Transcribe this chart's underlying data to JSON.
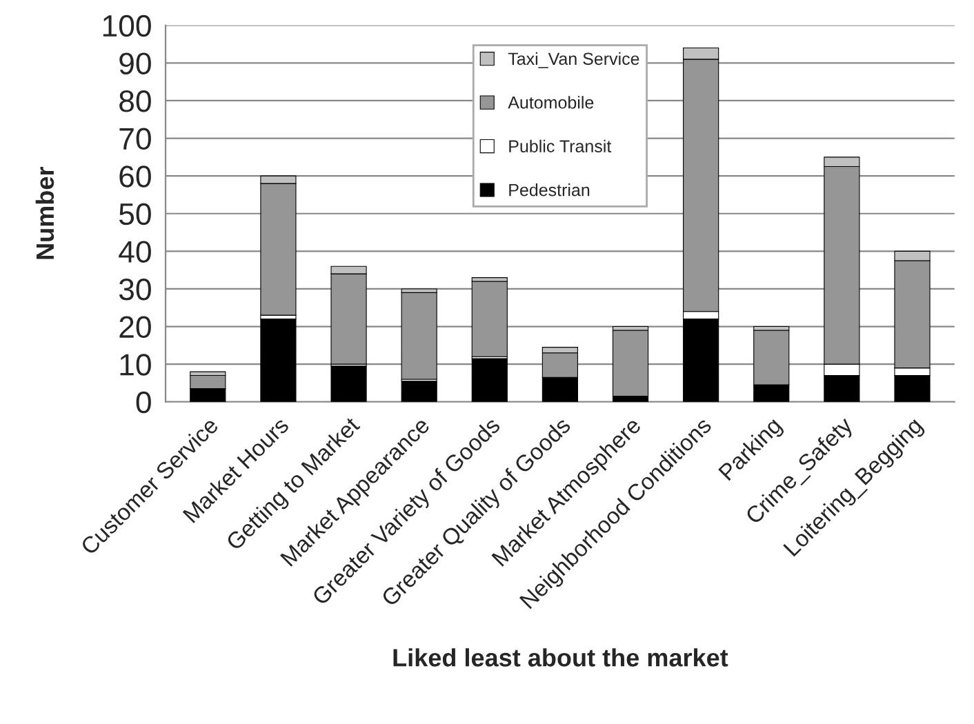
{
  "chart_data": {
    "type": "bar",
    "stacked": true,
    "xlabel": "Liked least about the market",
    "ylabel": "Number",
    "categories": [
      "Customer Service",
      "Market Hours",
      "Getting to Market",
      "Market Appearance",
      "Greater Variety of Goods",
      "Greater Quality of Goods",
      "Market Atmosphere",
      "Neighborhood Conditions",
      "Parking",
      "Crime_Safety",
      "Loitering_Begging"
    ],
    "series": [
      {
        "name": "Pedestrian",
        "color": "#000000",
        "values": [
          3.5,
          22,
          9.5,
          5.5,
          11.5,
          6.5,
          1.5,
          22,
          4.5,
          7,
          7
        ]
      },
      {
        "name": "Public Transit",
        "color": "#ffffff",
        "values": [
          0,
          1,
          0.5,
          0.5,
          0.5,
          0,
          0,
          2,
          0,
          3,
          2
        ]
      },
      {
        "name": "Automobile",
        "color": "#969696",
        "values": [
          3.5,
          35,
          24,
          23,
          20,
          6.5,
          17.5,
          67,
          14.5,
          52.5,
          28.5
        ]
      },
      {
        "name": "Taxi_Van Service",
        "color": "#c0c0c0",
        "values": [
          1,
          2,
          2,
          1,
          1,
          1.5,
          1,
          3,
          1,
          2.5,
          2.5
        ]
      }
    ],
    "ylim": [
      0,
      100
    ],
    "yticks": [
      0,
      10,
      20,
      30,
      40,
      50,
      60,
      70,
      80,
      90,
      100
    ],
    "grid": "y",
    "legend": "top"
  }
}
